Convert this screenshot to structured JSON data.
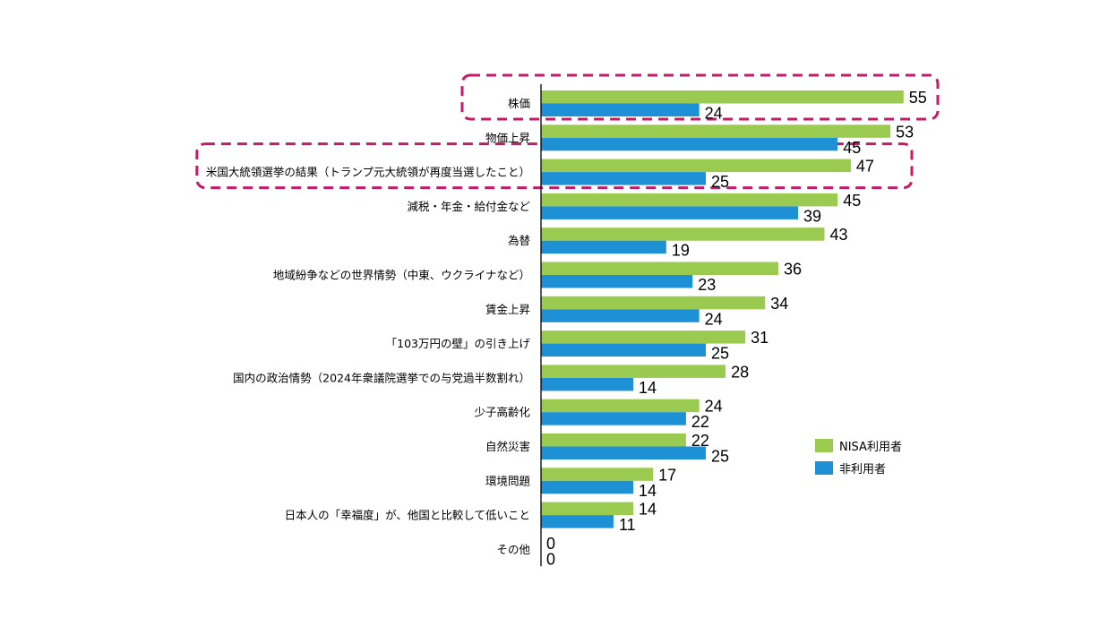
{
  "colors": {
    "nisa": "#9ACA4F",
    "non": "#1E91D6",
    "highlight": "#C8186A"
  },
  "legend": {
    "nisa_label": "NISA利用者",
    "non_label": "非利用者"
  },
  "chart_data": {
    "type": "bar",
    "orientation": "horizontal",
    "categories": [
      "株価",
      "物価上昇",
      "米国大統領選挙の結果（トランプ元大統領が再度当選したこと）",
      "減税・年金・給付金など",
      "為替",
      "地域紛争などの世界情勢（中東、ウクライナなど）",
      "賃金上昇",
      "「103万円の壁」の引き上げ",
      "国内の政治情勢（2024年衆議院選挙での与党過半数割れ）",
      "少子高齢化",
      "自然災害",
      "環境問題",
      "日本人の「幸福度」が、他国と比較して低いこと",
      "その他"
    ],
    "series": [
      {
        "name": "NISA利用者",
        "values": [
          55,
          53,
          47,
          45,
          43,
          36,
          34,
          31,
          28,
          24,
          22,
          17,
          14,
          0
        ]
      },
      {
        "name": "非利用者",
        "values": [
          24,
          45,
          25,
          39,
          19,
          23,
          24,
          25,
          14,
          22,
          25,
          14,
          11,
          0
        ]
      }
    ],
    "highlighted_categories": [
      "株価",
      "米国大統領選挙の結果（トランプ元大統領が再度当選したこと）"
    ],
    "xlim": [
      0,
      55
    ],
    "legend_position": "right",
    "grid": false
  }
}
